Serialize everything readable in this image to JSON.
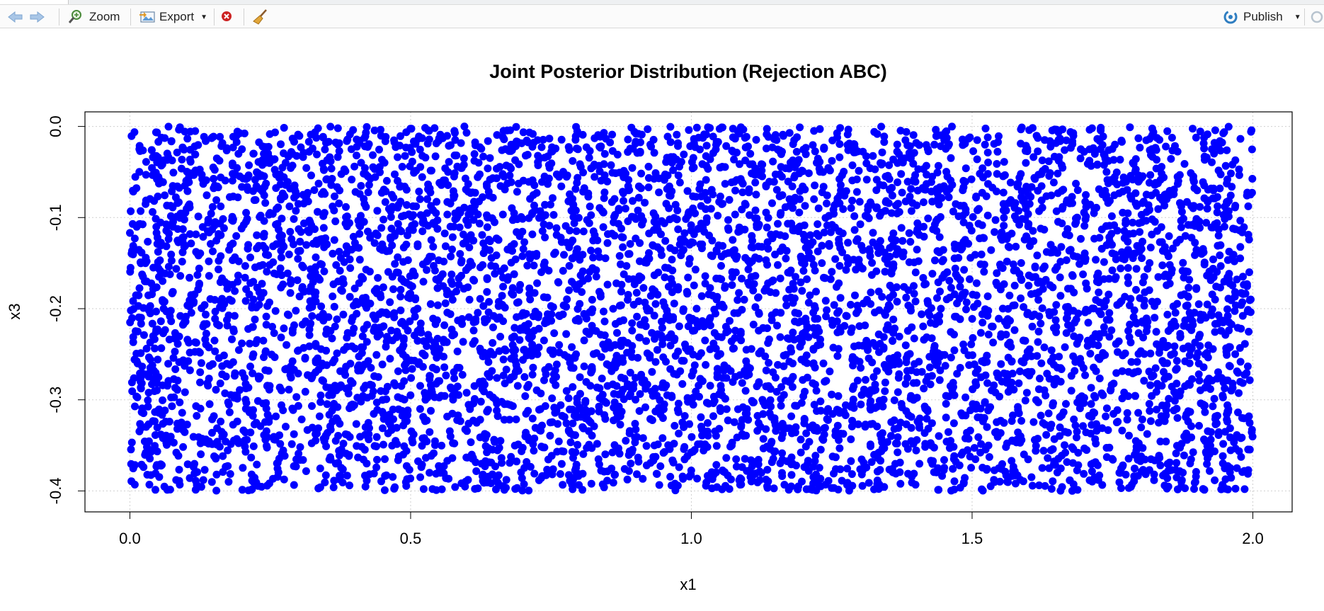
{
  "toolbar": {
    "back_icon": "arrow-left-icon",
    "forward_icon": "arrow-right-icon",
    "zoom_label": "Zoom",
    "export_label": "Export",
    "remove_icon": "remove-plot-icon",
    "clear_icon": "broom-icon",
    "publish_label": "Publish",
    "refresh_icon": "refresh-icon",
    "accent": "#2f7ec1",
    "remove_color": "#cc2222"
  },
  "chart_data": {
    "type": "scatter",
    "title": "Joint Posterior Distribution (Rejection ABC)",
    "xlabel": "x1",
    "ylabel": "x3",
    "xlim": [
      -0.08,
      2.07
    ],
    "ylim": [
      -0.423,
      0.016
    ],
    "xticks": [
      "0.0",
      "0.5",
      "1.0",
      "1.5",
      "2.0"
    ],
    "xtick_values": [
      0.0,
      0.5,
      1.0,
      1.5,
      2.0
    ],
    "yticks": [
      "0.0",
      "-0.1",
      "-0.2",
      "-0.3",
      "-0.4"
    ],
    "ytick_values": [
      0.0,
      -0.1,
      -0.2,
      -0.3,
      -0.4
    ],
    "grid": true,
    "point_color": "#0000ff",
    "points_description_range": {
      "x": [
        0.0,
        2.0
      ],
      "y": [
        -0.4,
        0.0
      ],
      "approx_count": 6000,
      "distribution": "uniform"
    }
  }
}
